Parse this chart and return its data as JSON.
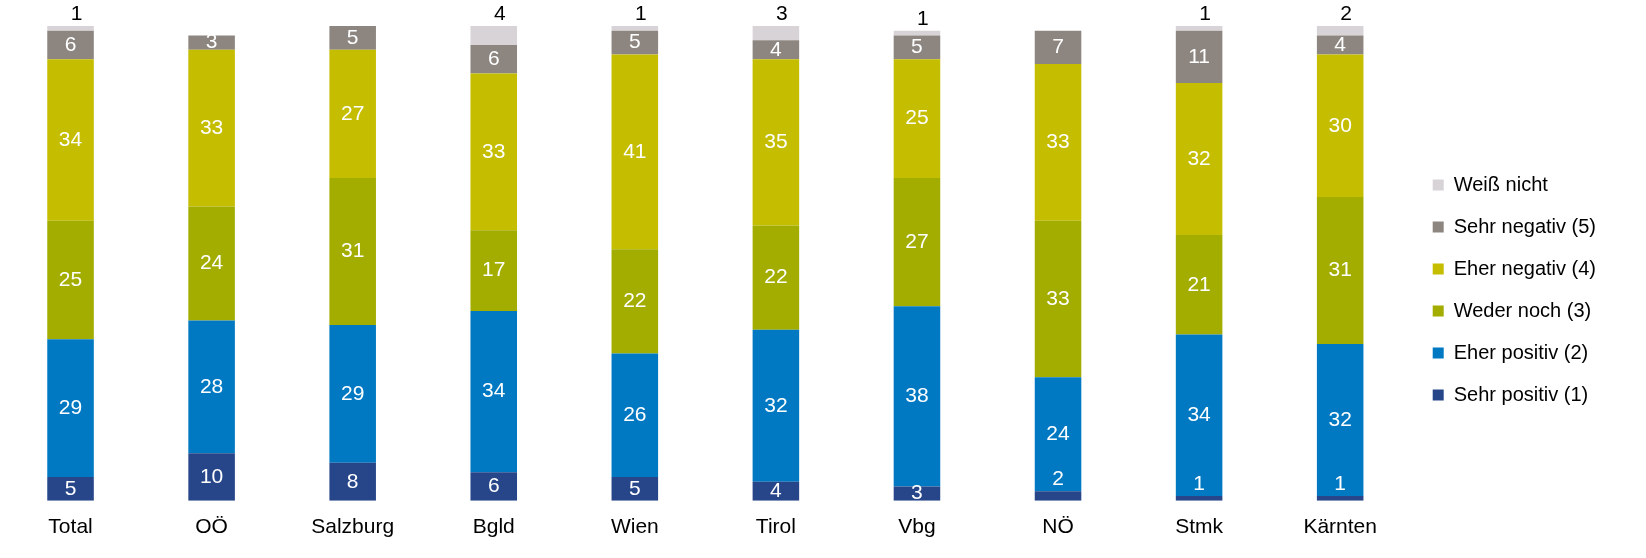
{
  "chart_data": {
    "type": "bar",
    "stacked": true,
    "data_labels": true,
    "legend": "right",
    "grid": false,
    "tick_labels": "x",
    "ylim": [
      0,
      100
    ],
    "categories": [
      "Total",
      "OÖ",
      "Salzburg",
      "Bgld",
      "Wien",
      "Tirol",
      "Vbg",
      "NÖ",
      "Stmk",
      "Kärnten"
    ],
    "series": [
      {
        "name": "Sehr positiv (1)",
        "color": "#27468a",
        "values": [
          5,
          10,
          8,
          6,
          5,
          4,
          3,
          2,
          1,
          1
        ]
      },
      {
        "name": "Eher positiv (2)",
        "color": "#0079c2",
        "values": [
          29,
          28,
          29,
          34,
          26,
          32,
          38,
          24,
          34,
          32
        ]
      },
      {
        "name": "Weder noch (3)",
        "color": "#a3ad00",
        "values": [
          25,
          24,
          31,
          17,
          22,
          22,
          27,
          33,
          21,
          31
        ]
      },
      {
        "name": "Eher negativ (4)",
        "color": "#c5bd00",
        "values": [
          34,
          33,
          27,
          33,
          41,
          35,
          25,
          33,
          32,
          30
        ]
      },
      {
        "name": "Sehr negativ (5)",
        "color": "#8d8680",
        "values": [
          6,
          3,
          5,
          6,
          5,
          4,
          5,
          7,
          11,
          4
        ]
      },
      {
        "name": "Weiß nicht",
        "color": "#d8d3d7",
        "values": [
          1,
          null,
          null,
          4,
          1,
          3,
          1,
          null,
          1,
          2
        ]
      }
    ]
  }
}
